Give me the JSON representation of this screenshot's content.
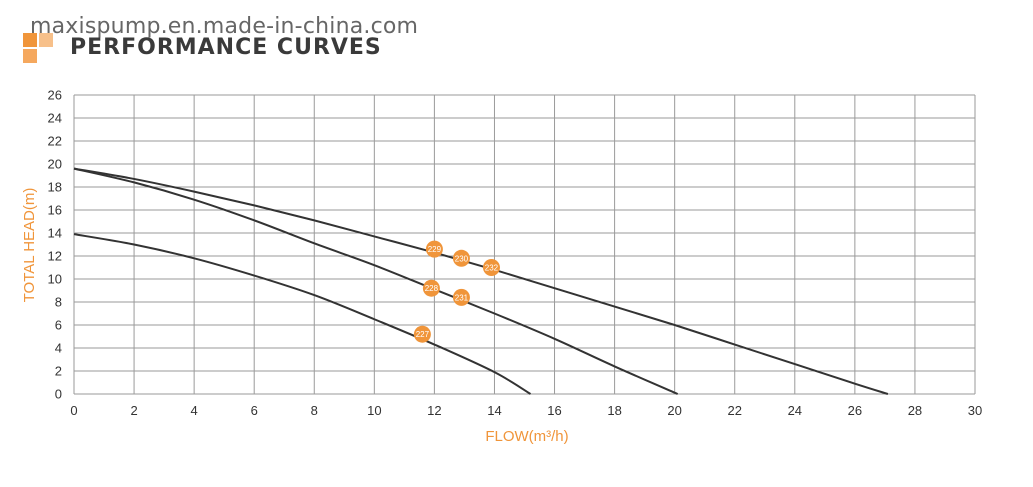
{
  "header": {
    "watermark": "maxispump.en.made-in-china.com",
    "title": "PERFORMANCE CURVES"
  },
  "colors": {
    "accent": "#f0953a",
    "grid": "#9a9a9a",
    "curve": "#333333",
    "text": "#333333"
  },
  "chart_data": {
    "type": "line",
    "xlabel": "FLOW(m³/h)",
    "ylabel": "TOTAL HEAD(m)",
    "xlim": [
      0,
      30
    ],
    "ylim": [
      0,
      26
    ],
    "xticks": [
      "0",
      "2",
      "4",
      "6",
      "8",
      "10",
      "12",
      "14",
      "16",
      "18",
      "20",
      "22",
      "24",
      "26",
      "28",
      "30"
    ],
    "yticks": [
      "0",
      "2",
      "4",
      "6",
      "8",
      "10",
      "12",
      "14",
      "16",
      "18",
      "20",
      "22",
      "24",
      "26"
    ],
    "grid": true,
    "series": [
      {
        "x": [
          0,
          2,
          4,
          6,
          8,
          10,
          12,
          14,
          15.2
        ],
        "y": [
          13.9,
          13.0,
          11.8,
          10.3,
          8.6,
          6.5,
          4.3,
          1.9,
          0
        ]
      },
      {
        "x": [
          0,
          2,
          4,
          6,
          8,
          10,
          12,
          14,
          16,
          18,
          20.1
        ],
        "y": [
          19.6,
          18.4,
          16.9,
          15.1,
          13.1,
          11.2,
          9.1,
          7.0,
          4.8,
          2.4,
          0
        ]
      },
      {
        "x": [
          0,
          2,
          4,
          6,
          8,
          10,
          12,
          14,
          16,
          18,
          20,
          22,
          24,
          26,
          27.1
        ],
        "y": [
          19.6,
          18.7,
          17.6,
          16.4,
          15.1,
          13.7,
          12.3,
          10.8,
          9.2,
          7.6,
          6.0,
          4.3,
          2.6,
          0.9,
          0
        ]
      }
    ],
    "markers": [
      {
        "label": "229",
        "x": 12.0,
        "y": 12.6
      },
      {
        "label": "230",
        "x": 12.9,
        "y": 11.8
      },
      {
        "label": "232",
        "x": 13.9,
        "y": 11.0
      },
      {
        "label": "228",
        "x": 11.9,
        "y": 9.2
      },
      {
        "label": "231",
        "x": 12.9,
        "y": 8.4
      },
      {
        "label": "227",
        "x": 11.6,
        "y": 5.2
      }
    ]
  }
}
